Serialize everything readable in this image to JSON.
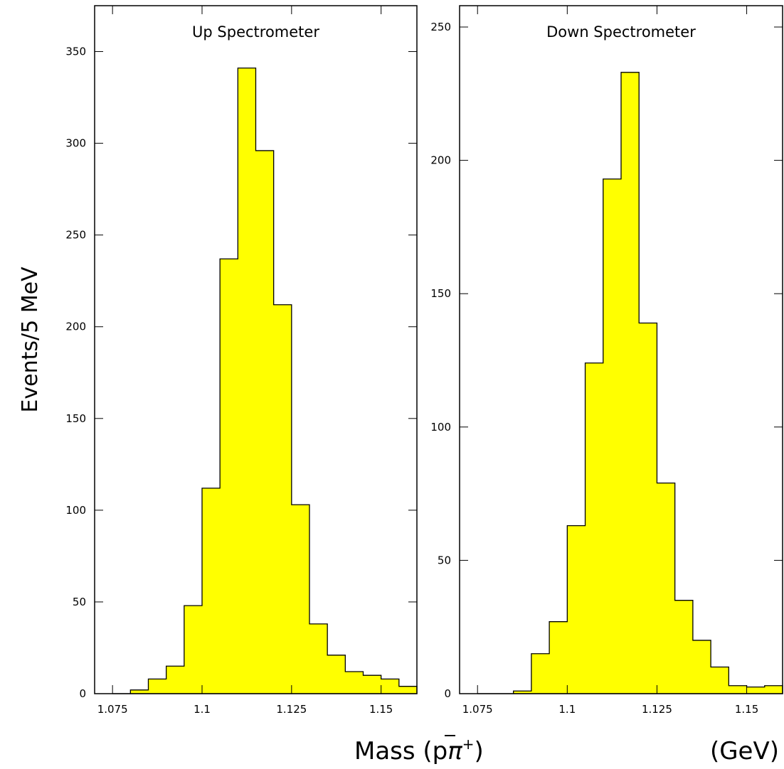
{
  "chart_data": [
    {
      "type": "bar",
      "title": "Up Spectrometer",
      "bin_width": 0.005,
      "bin_edges_start": 1.075,
      "values": [
        0,
        2,
        8,
        15,
        48,
        112,
        237,
        341,
        296,
        212,
        103,
        38,
        21,
        12,
        10,
        8,
        4
      ],
      "xlim": [
        1.07,
        1.16
      ],
      "ylim": [
        0,
        375
      ],
      "xticks": [
        1.075,
        1.1,
        1.125,
        1.15
      ],
      "xtick_labels": [
        "1.075",
        "1.1",
        "1.125",
        "1.15"
      ],
      "yticks": [
        0,
        50,
        100,
        150,
        200,
        250,
        300,
        350
      ],
      "ytick_labels": [
        "0",
        "50",
        "100",
        "150",
        "200",
        "250",
        "300",
        "350"
      ],
      "fill_color": "#ffff00"
    },
    {
      "type": "bar",
      "title": "Down Spectrometer",
      "bin_width": 0.005,
      "bin_edges_start": 1.075,
      "values": [
        0,
        0,
        1,
        15,
        27,
        63,
        124,
        193,
        233,
        139,
        79,
        35,
        20,
        10,
        3,
        2.5,
        3
      ],
      "xlim": [
        1.07,
        1.16
      ],
      "ylim": [
        0,
        258
      ],
      "xticks": [
        1.075,
        1.1,
        1.125,
        1.15
      ],
      "xtick_labels": [
        "1.075",
        "1.1",
        "1.125",
        "1.15"
      ],
      "yticks": [
        0,
        50,
        100,
        150,
        200,
        250
      ],
      "ytick_labels": [
        "0",
        "50",
        "100",
        "150",
        "200",
        "250"
      ],
      "fill_color": "#ffff00"
    }
  ],
  "ylabel": "Events/5 MeV",
  "xlabel": {
    "main": "Mass (",
    "pbar": "p",
    "pi": "π",
    "sup": "+",
    "close": ")",
    "unit": "(GeV)"
  }
}
